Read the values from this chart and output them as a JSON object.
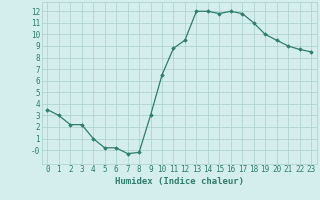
{
  "x": [
    0,
    1,
    2,
    3,
    4,
    5,
    6,
    7,
    8,
    9,
    10,
    11,
    12,
    13,
    14,
    15,
    16,
    17,
    18,
    19,
    20,
    21,
    22,
    23
  ],
  "y": [
    3.5,
    3.0,
    2.2,
    2.2,
    1.0,
    0.2,
    0.2,
    -0.3,
    -0.2,
    3.0,
    6.5,
    8.8,
    9.5,
    12.0,
    12.0,
    11.8,
    12.0,
    11.8,
    11.0,
    10.0,
    9.5,
    9.0,
    8.7,
    8.5
  ],
  "line_color": "#2e7d6e",
  "marker": "D",
  "marker_size": 1.8,
  "linewidth": 0.9,
  "bg_color": "#d4eeee",
  "grid_color": "#aacece",
  "xlabel": "Humidex (Indice chaleur)",
  "xlim": [
    -0.5,
    23.5
  ],
  "ylim": [
    -1.2,
    12.8
  ],
  "yticks": [
    0,
    1,
    2,
    3,
    4,
    5,
    6,
    7,
    8,
    9,
    10,
    11,
    12
  ],
  "ytick_labels": [
    "-0",
    "1",
    "2",
    "3",
    "4",
    "5",
    "6",
    "7",
    "8",
    "9",
    "10",
    "11",
    "12"
  ],
  "xticks": [
    0,
    1,
    2,
    3,
    4,
    5,
    6,
    7,
    8,
    9,
    10,
    11,
    12,
    13,
    14,
    15,
    16,
    17,
    18,
    19,
    20,
    21,
    22,
    23
  ],
  "tick_fontsize": 5.5,
  "label_fontsize": 6.5
}
